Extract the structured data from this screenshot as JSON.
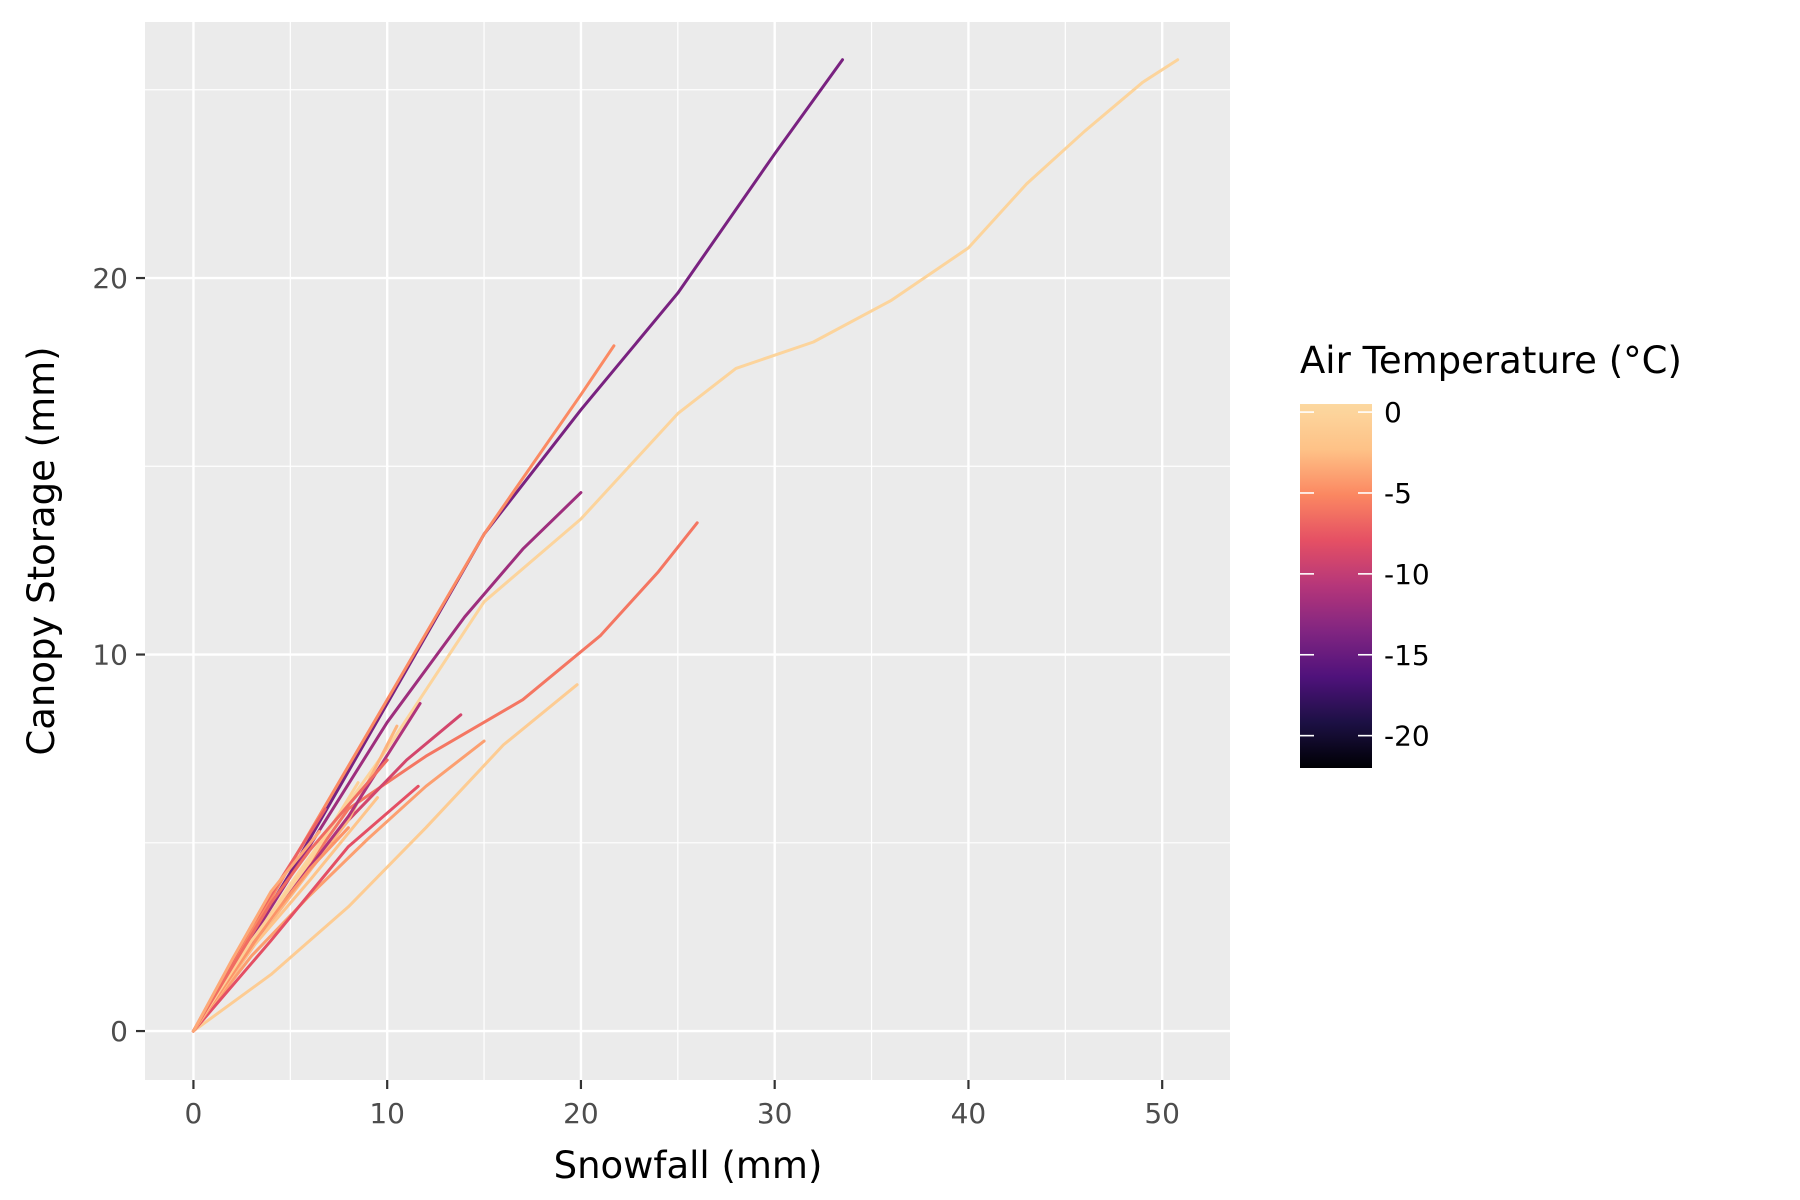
{
  "chart_data": {
    "type": "line",
    "xlabel": "Snowfall (mm)",
    "ylabel": "Canopy Storage (mm)",
    "xlim": [
      -2.5,
      53.5
    ],
    "ylim": [
      -1.3,
      26.8
    ],
    "x_ticks": [
      0,
      10,
      20,
      30,
      40,
      50
    ],
    "y_ticks": [
      0,
      10,
      20
    ],
    "x_tick_labels": [
      "0",
      "10",
      "20",
      "30",
      "40",
      "50"
    ],
    "y_tick_labels": [
      "0",
      "10",
      "20"
    ],
    "grid": true,
    "legend": {
      "title": "Air Temperature (°C)",
      "placement": "right",
      "scale_min": -22,
      "scale_max": 0.5,
      "ticks": [
        0,
        -5,
        -10,
        -15,
        -20
      ],
      "tick_labels": [
        "0",
        "-5",
        "-10",
        "-15",
        "-20"
      ],
      "palette": [
        "#000004",
        "#1c1044",
        "#4f127b",
        "#812581",
        "#b5367a",
        "#e55064",
        "#fb8761",
        "#fec287",
        "#fcd8a0"
      ]
    },
    "series": [
      {
        "temp": -14,
        "x": [
          0,
          5,
          10,
          15,
          20,
          25,
          30,
          33.5
        ],
        "y": [
          0,
          4.2,
          8.7,
          13.2,
          16.5,
          19.6,
          23.3,
          25.8
        ]
      },
      {
        "temp": 0,
        "x": [
          0,
          5,
          10,
          15,
          20,
          25,
          28,
          32,
          36,
          40,
          43,
          46,
          49,
          50.8
        ],
        "y": [
          0,
          3.9,
          7.5,
          11.4,
          13.6,
          16.4,
          17.6,
          18.3,
          19.4,
          20.8,
          22.5,
          23.9,
          25.2,
          25.8
        ]
      },
      {
        "temp": -5,
        "x": [
          0,
          5,
          10,
          15,
          20,
          21.7
        ],
        "y": [
          0,
          4.4,
          8.8,
          13.2,
          16.9,
          18.2
        ]
      },
      {
        "temp": -12,
        "x": [
          0,
          5,
          10,
          14,
          17,
          20
        ],
        "y": [
          0,
          4.1,
          8.2,
          11.0,
          12.8,
          14.3
        ]
      },
      {
        "temp": -6,
        "x": [
          0,
          4,
          8,
          12,
          17,
          21,
          24,
          26
        ],
        "y": [
          0,
          3.0,
          5.9,
          7.3,
          8.8,
          10.5,
          12.2,
          13.5
        ]
      },
      {
        "temp": -1,
        "x": [
          0,
          4,
          8,
          12,
          16,
          19.8
        ],
        "y": [
          0,
          1.5,
          3.3,
          5.4,
          7.6,
          9.2
        ]
      },
      {
        "temp": -9,
        "x": [
          0,
          4,
          8,
          11,
          13.8
        ],
        "y": [
          0,
          3.1,
          5.6,
          7.2,
          8.4
        ]
      },
      {
        "temp": -7,
        "x": [
          0,
          3,
          6.8
        ],
        "y": [
          0,
          2.8,
          5.9
        ]
      },
      {
        "temp": -4,
        "x": [
          0,
          3,
          6,
          9,
          12,
          15
        ],
        "y": [
          0,
          2.0,
          3.6,
          5.1,
          6.5,
          7.7
        ]
      },
      {
        "temp": -3,
        "x": [
          0,
          4,
          8,
          10.5
        ],
        "y": [
          0,
          2.9,
          5.6,
          8.1
        ]
      },
      {
        "temp": -11,
        "x": [
          0,
          4,
          8,
          11.7
        ],
        "y": [
          0,
          3.0,
          5.7,
          8.7
        ]
      },
      {
        "temp": -8,
        "x": [
          0,
          4,
          8,
          11.6
        ],
        "y": [
          0,
          2.4,
          4.9,
          6.5
        ]
      },
      {
        "temp": -2,
        "x": [
          0,
          3,
          6,
          9.5
        ],
        "y": [
          0,
          2.2,
          4.0,
          6.2
        ]
      },
      {
        "temp": -4.5,
        "x": [
          0,
          2,
          4,
          6,
          8
        ],
        "y": [
          0,
          1.5,
          3.0,
          4.3,
          5.4
        ]
      },
      {
        "temp": -0.5,
        "x": [
          0,
          3,
          6,
          8.5
        ],
        "y": [
          0,
          2.4,
          4.5,
          6.6
        ]
      },
      {
        "temp": -6.5,
        "x": [
          0,
          2,
          4,
          6,
          8,
          10
        ],
        "y": [
          0,
          1.7,
          3.4,
          4.8,
          6.0,
          7.2
        ]
      },
      {
        "temp": -3.5,
        "x": [
          0,
          2,
          4,
          6.5
        ],
        "y": [
          0,
          1.9,
          3.7,
          5.3
        ]
      }
    ]
  }
}
